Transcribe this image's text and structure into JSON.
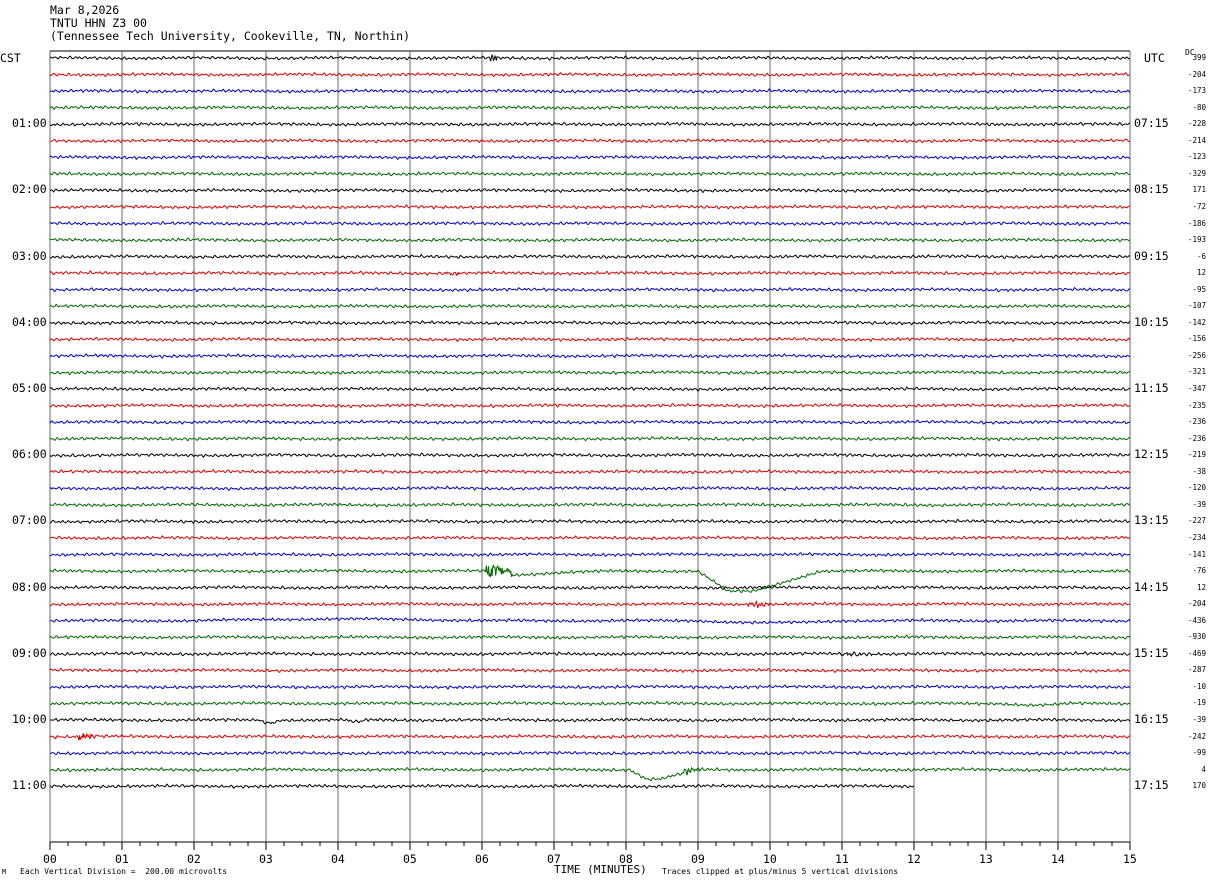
{
  "header": {
    "date": "Mar 8,2026",
    "station": "TNTU HHN Z3 00",
    "location": "(Tennessee Tech University, Cookeville, TN, Northin)"
  },
  "left_tz": "CST",
  "right_tz": "UTC",
  "dc_label": "DC",
  "footer": {
    "scale_note": "Each Vertical Division =  200.00 microvolts",
    "xlabel": "TIME (MINUTES)",
    "clip_note": "Traces clipped at plus/minus 5 vertical divisions",
    "corner_mark": "M"
  },
  "colors": {
    "cycle": [
      "#000000",
      "#dd0000",
      "#0000cc",
      "#006600"
    ],
    "grid": "#000000"
  },
  "chart_data": {
    "type": "line",
    "title": "TNTU HHN Z3 00",
    "xlabel": "TIME (MINUTES)",
    "x_ticks": [
      "00",
      "01",
      "02",
      "03",
      "04",
      "05",
      "06",
      "07",
      "08",
      "09",
      "10",
      "11",
      "12",
      "13",
      "14",
      "15"
    ],
    "xlim": [
      0,
      15
    ],
    "line_minutes": 15,
    "rows_per_hour": 4,
    "hour_labels_cst": [
      "01:00",
      "02:00",
      "03:00",
      "04:00",
      "05:00",
      "06:00",
      "07:00",
      "08:00",
      "09:00",
      "10:00",
      "11:00"
    ],
    "hour_labels_utc": [
      "07:15",
      "08:15",
      "09:15",
      "10:15",
      "11:15",
      "12:15",
      "13:15",
      "14:15",
      "15:15",
      "16:15",
      "17:15"
    ],
    "dc_offsets": [
      "399",
      "-204",
      "-173",
      "-80",
      "-228",
      "-214",
      "-123",
      "-329",
      "171",
      "-72",
      "-186",
      "-193",
      "-6",
      "12",
      "-95",
      "-107",
      "-142",
      "-156",
      "-256",
      "-321",
      "-347",
      "-235",
      "-236",
      "-236",
      "-219",
      "-38",
      "-120",
      "-39",
      "-227",
      "-234",
      "-141",
      "-76",
      "12",
      "-204",
      "-436",
      "-930",
      "-469",
      "-287",
      "-10",
      "-19",
      "-39",
      "-242",
      "-99",
      "4",
      "170"
    ],
    "last_row_end_minute": 12.0,
    "events": [
      {
        "row": 0,
        "minute": 6.15,
        "kind": "spike",
        "amp": 0.9
      },
      {
        "row": 13,
        "minute": 5.5,
        "kind": "burst",
        "duration": 0.3,
        "amp": 0.7
      },
      {
        "row": 31,
        "minute": 6.05,
        "kind": "burst",
        "duration": 0.45,
        "amp": 2.2
      },
      {
        "row": 31,
        "minute": 6.4,
        "kind": "step",
        "to_minute": 8.4,
        "amp": 1.2
      },
      {
        "row": 31,
        "minute": 9.0,
        "kind": "drop",
        "to_minute": 10.7,
        "amp": 6.0
      },
      {
        "row": 33,
        "minute": 9.7,
        "kind": "burst",
        "duration": 0.35,
        "amp": 1.3
      },
      {
        "row": 34,
        "minute": 2.0,
        "kind": "bump",
        "duration": 4.0,
        "amp": -0.5
      },
      {
        "row": 34,
        "minute": 9.0,
        "kind": "bump",
        "duration": 2.0,
        "amp": 0.6
      },
      {
        "row": 36,
        "minute": 11.0,
        "kind": "burst",
        "duration": 0.6,
        "amp": 0.5
      },
      {
        "row": 39,
        "minute": 13.2,
        "kind": "bump",
        "duration": 1.0,
        "amp": 0.5
      },
      {
        "row": 40,
        "minute": 2.9,
        "kind": "bump",
        "duration": 0.3,
        "amp": 0.8
      },
      {
        "row": 40,
        "minute": 4.1,
        "kind": "bump",
        "duration": 0.3,
        "amp": 0.6
      },
      {
        "row": 41,
        "minute": 0.4,
        "kind": "burst",
        "duration": 0.35,
        "amp": 1.0
      },
      {
        "row": 43,
        "minute": 8.05,
        "kind": "drop",
        "to_minute": 9.0,
        "amp": 2.8
      },
      {
        "row": 43,
        "minute": 8.8,
        "kind": "burst",
        "duration": 0.3,
        "amp": 1.2
      }
    ]
  }
}
